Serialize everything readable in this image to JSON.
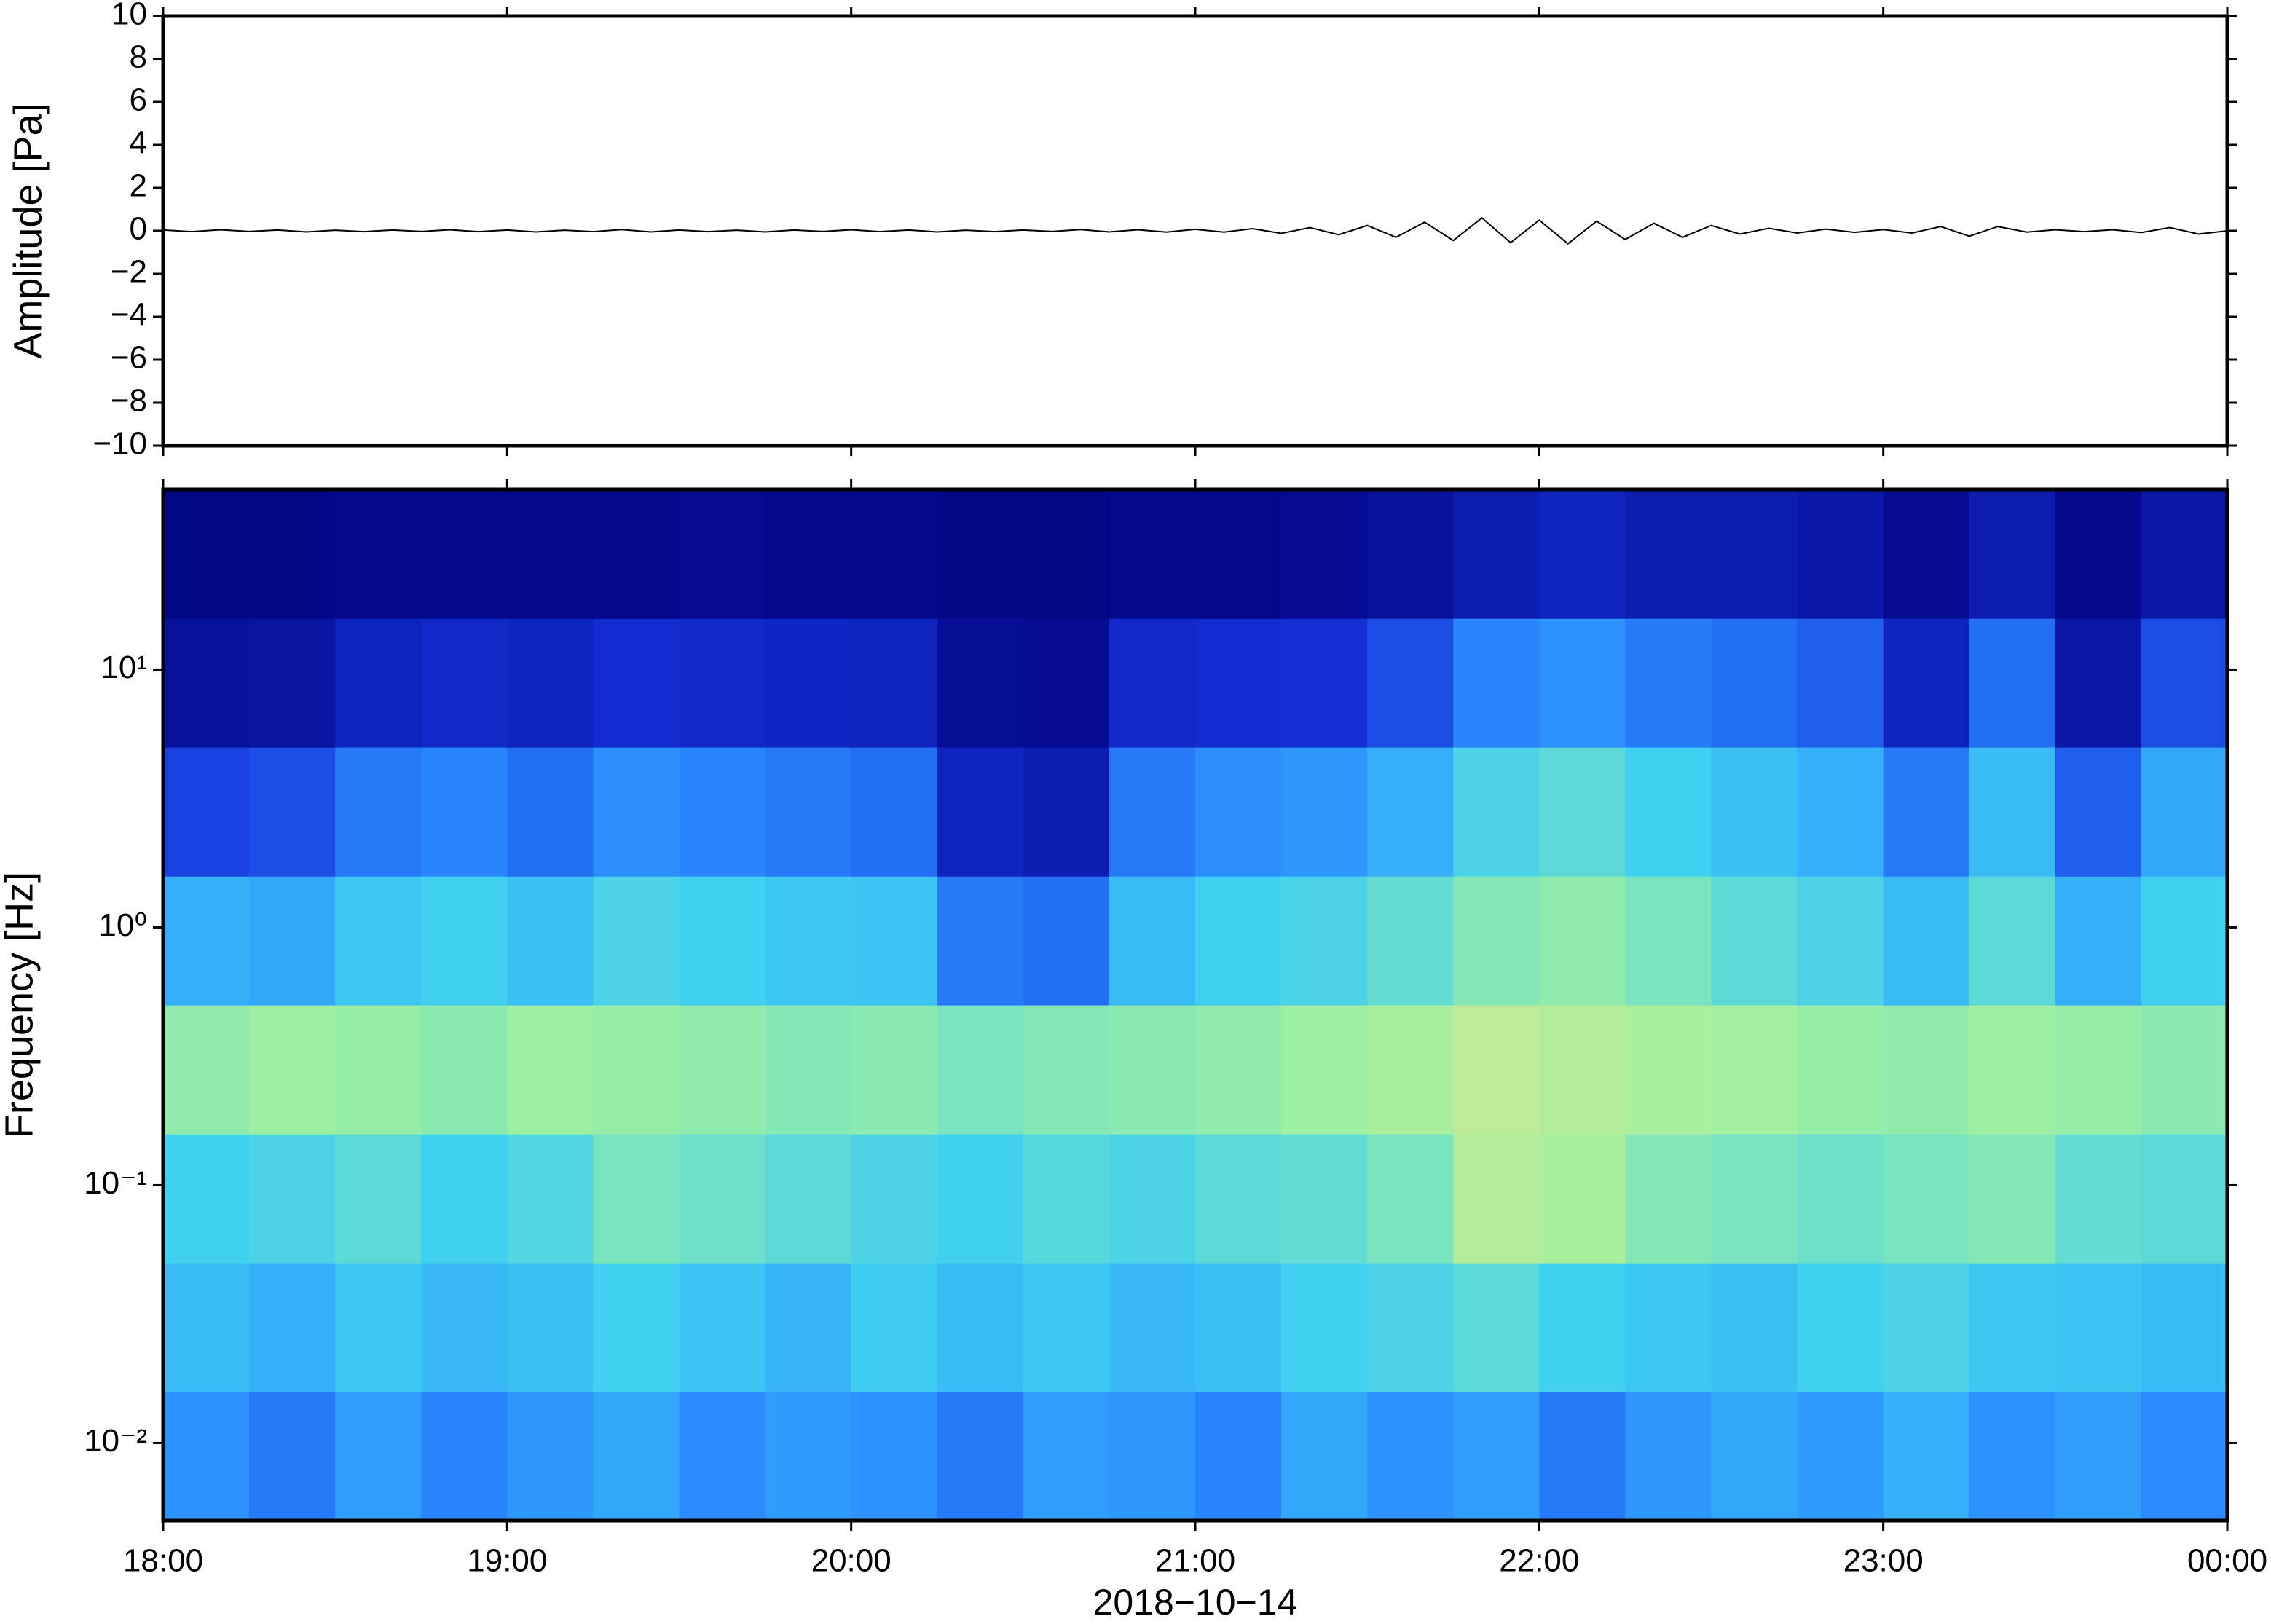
{
  "chart_data": [
    {
      "type": "line",
      "ylabel": "Amplitude [Pa]",
      "xlim": [
        0,
        360
      ],
      "ylim": [
        -10,
        10
      ],
      "yticks": [
        {
          "value": -10,
          "label": "−10"
        },
        {
          "value": -8,
          "label": "−8"
        },
        {
          "value": -6,
          "label": "−6"
        },
        {
          "value": -4,
          "label": "−4"
        },
        {
          "value": -2,
          "label": "−2"
        },
        0,
        2,
        4,
        6,
        8,
        10
      ],
      "color": "#000000",
      "x": [
        0,
        5,
        10,
        15,
        20,
        25,
        30,
        35,
        40,
        45,
        50,
        55,
        60,
        65,
        70,
        75,
        80,
        85,
        90,
        95,
        100,
        105,
        110,
        115,
        120,
        125,
        130,
        135,
        140,
        145,
        150,
        155,
        160,
        165,
        170,
        175,
        180,
        185,
        190,
        195,
        200,
        205,
        210,
        215,
        220,
        225,
        230,
        235,
        240,
        245,
        250,
        255,
        260,
        265,
        270,
        275,
        280,
        285,
        290,
        295,
        300,
        305,
        310,
        315,
        320,
        325,
        330,
        335,
        340,
        345,
        350,
        355,
        360
      ],
      "values": [
        0.04,
        -0.04,
        0.05,
        -0.03,
        0.04,
        -0.05,
        0.03,
        -0.04,
        0.04,
        -0.03,
        0.05,
        -0.04,
        0.04,
        -0.05,
        0.03,
        -0.04,
        0.06,
        -0.05,
        0.04,
        -0.04,
        0.03,
        -0.05,
        0.04,
        -0.03,
        0.05,
        -0.04,
        0.04,
        -0.05,
        0.03,
        -0.04,
        0.04,
        -0.03,
        0.06,
        -0.05,
        0.05,
        -0.06,
        0.07,
        -0.06,
        0.1,
        -0.12,
        0.15,
        -0.18,
        0.25,
        -0.3,
        0.4,
        -0.45,
        0.6,
        -0.55,
        0.5,
        -0.6,
        0.45,
        -0.4,
        0.35,
        -0.3,
        0.25,
        -0.15,
        0.12,
        -0.1,
        0.08,
        -0.07,
        0.06,
        -0.1,
        0.2,
        -0.25,
        0.2,
        -0.06,
        0.05,
        -0.04,
        0.05,
        -0.08,
        0.15,
        -0.15,
        0
      ]
    },
    {
      "type": "heatmap",
      "ylabel": "Frequency [Hz]",
      "xlabel": "2018−10−14",
      "xlim": [
        0,
        360
      ],
      "xticks": [
        {
          "value": 0,
          "label": "18:00"
        },
        {
          "value": 60,
          "label": "19:00"
        },
        {
          "value": 120,
          "label": "20:00"
        },
        {
          "value": 180,
          "label": "21:00"
        },
        {
          "value": 240,
          "label": "22:00"
        },
        {
          "value": 300,
          "label": "23:00"
        },
        {
          "value": 360,
          "label": "00:00"
        }
      ],
      "ylim": [
        0.005,
        50
      ],
      "log_y": true,
      "yticks": [
        {
          "value": 0.01,
          "label": "10⁻²"
        },
        {
          "value": 0.1,
          "label": "10⁻¹"
        },
        {
          "value": 1,
          "label": "10⁰"
        },
        {
          "value": 10,
          "label": "10¹"
        }
      ],
      "xbins": [
        0,
        15,
        30,
        45,
        60,
        75,
        90,
        105,
        120,
        135,
        150,
        165,
        180,
        195,
        210,
        225,
        240,
        255,
        270,
        285,
        300,
        315,
        330,
        345,
        360
      ],
      "ybins": [
        0.005,
        0.0158,
        0.05,
        0.158,
        0.5,
        1.58,
        5,
        15.8,
        50
      ],
      "zlim": [
        0,
        1
      ],
      "colormap": [
        "#00007a",
        "#1530d8",
        "#2a8cff",
        "#40d0f0",
        "#a0f0a0",
        "#ffe08a",
        "#ff9040"
      ],
      "z": [
        [
          0.35,
          0.3,
          0.38,
          0.32,
          0.36,
          0.4,
          0.33,
          0.37,
          0.35,
          0.3,
          0.38,
          0.36,
          0.32,
          0.4,
          0.35,
          0.38,
          0.3,
          0.36,
          0.4,
          0.37,
          0.42,
          0.35,
          0.38,
          0.33
        ],
        [
          0.45,
          0.42,
          0.48,
          0.44,
          0.46,
          0.5,
          0.47,
          0.43,
          0.49,
          0.45,
          0.48,
          0.44,
          0.46,
          0.5,
          0.52,
          0.55,
          0.5,
          0.48,
          0.46,
          0.5,
          0.52,
          0.48,
          0.47,
          0.45
        ],
        [
          0.5,
          0.52,
          0.55,
          0.5,
          0.53,
          0.6,
          0.58,
          0.55,
          0.52,
          0.5,
          0.54,
          0.52,
          0.55,
          0.56,
          0.6,
          0.7,
          0.68,
          0.62,
          0.6,
          0.58,
          0.6,
          0.62,
          0.56,
          0.55
        ],
        [
          0.64,
          0.66,
          0.65,
          0.63,
          0.66,
          0.65,
          0.64,
          0.62,
          0.63,
          0.6,
          0.62,
          0.63,
          0.64,
          0.66,
          0.68,
          0.72,
          0.7,
          0.68,
          0.67,
          0.65,
          0.64,
          0.66,
          0.65,
          0.63
        ],
        [
          0.42,
          0.4,
          0.48,
          0.5,
          0.46,
          0.52,
          0.5,
          0.48,
          0.47,
          0.3,
          0.28,
          0.45,
          0.5,
          0.52,
          0.56,
          0.62,
          0.64,
          0.6,
          0.55,
          0.52,
          0.45,
          0.55,
          0.42,
          0.5
        ],
        [
          0.2,
          0.22,
          0.3,
          0.32,
          0.28,
          0.34,
          0.32,
          0.3,
          0.28,
          0.12,
          0.1,
          0.3,
          0.34,
          0.36,
          0.42,
          0.52,
          0.55,
          0.5,
          0.46,
          0.42,
          0.3,
          0.45,
          0.25,
          0.4
        ],
        [
          0.06,
          0.07,
          0.12,
          0.14,
          0.12,
          0.15,
          0.14,
          0.13,
          0.12,
          0.05,
          0.04,
          0.14,
          0.15,
          0.16,
          0.22,
          0.32,
          0.35,
          0.3,
          0.28,
          0.25,
          0.12,
          0.28,
          0.08,
          0.22
        ],
        [
          0.02,
          0.02,
          0.03,
          0.03,
          0.03,
          0.03,
          0.04,
          0.03,
          0.03,
          0.02,
          0.02,
          0.03,
          0.03,
          0.04,
          0.06,
          0.1,
          0.12,
          0.1,
          0.1,
          0.08,
          0.04,
          0.1,
          0.03,
          0.08
        ]
      ]
    }
  ]
}
